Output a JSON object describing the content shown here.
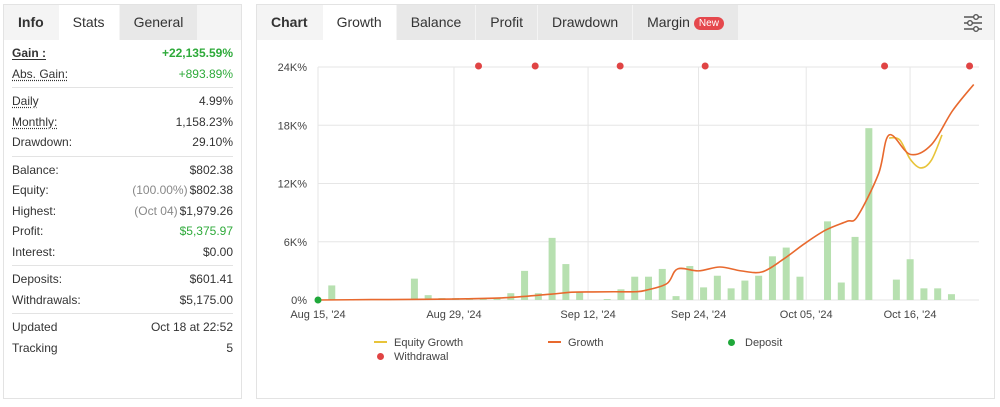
{
  "left_tabs": [
    "Info",
    "Stats",
    "General"
  ],
  "stats": {
    "groups": [
      [
        {
          "label": "Gain :",
          "value": "+22,135.59%",
          "style": "b",
          "vstyle": "bgreen"
        },
        {
          "label": "Abs. Gain:",
          "value": "+893.89%",
          "style": "u",
          "vstyle": "green"
        }
      ],
      [
        {
          "label": "Daily",
          "value": "4.99%",
          "style": "u",
          "vstyle": ""
        },
        {
          "label": "Monthly:",
          "value": "1,158.23%",
          "style": "u",
          "vstyle": ""
        },
        {
          "label": "Drawdown:",
          "value": "29.10%",
          "style": "",
          "vstyle": ""
        }
      ],
      [
        {
          "label": "Balance:",
          "value": "$802.38",
          "style": "",
          "vstyle": ""
        },
        {
          "label": "Equity:",
          "pre": "(100.00%)",
          "value": "$802.38",
          "style": "",
          "vstyle": ""
        },
        {
          "label": "Highest:",
          "pre": "(Oct 04)",
          "value": "$1,979.26",
          "style": "",
          "vstyle": ""
        },
        {
          "label": "Profit:",
          "value": "$5,375.97",
          "style": "",
          "vstyle": "green"
        },
        {
          "label": "Interest:",
          "value": "$0.00",
          "style": "",
          "vstyle": ""
        }
      ],
      [
        {
          "label": "Deposits:",
          "value": "$601.41",
          "style": "",
          "vstyle": ""
        },
        {
          "label": "Withdrawals:",
          "value": "$5,175.00",
          "style": "",
          "vstyle": ""
        }
      ],
      [
        {
          "label": "Updated",
          "value": "Oct 18 at 22:52",
          "style": "",
          "vstyle": ""
        },
        {
          "label": "Tracking",
          "value": "5",
          "style": "",
          "vstyle": ""
        }
      ]
    ]
  },
  "right_tabs": [
    "Chart",
    "Growth",
    "Balance",
    "Profit",
    "Drawdown",
    "Margin"
  ],
  "margin_badge": "New",
  "icons": {
    "filter": "sliders-icon"
  },
  "colors": {
    "growth": "#e8692e",
    "equity": "#e8c43a",
    "bars": "#b7e0b0",
    "withdrawal": "#e04444",
    "deposit": "#1fa83a",
    "grid": "#e6e6e6"
  },
  "legend": {
    "equity": "Equity Growth",
    "growth": "Growth",
    "deposit": "Deposit",
    "withdrawal": "Withdrawal"
  },
  "chart_data": {
    "type": "line",
    "xlabels": [
      "Aug 15, '24",
      "Aug 29, '24",
      "Sep 12, '24",
      "Sep 24, '24",
      "Oct 05, '24",
      "Oct 16, '24"
    ],
    "ylabels": [
      "0%",
      "6K%",
      "12K%",
      "18K%",
      "24K%"
    ],
    "ylim": [
      0,
      24000
    ],
    "n_days": 50,
    "growth": [
      [
        0,
        0
      ],
      [
        5,
        40
      ],
      [
        10,
        70
      ],
      [
        14,
        120
      ],
      [
        18,
        250
      ],
      [
        22,
        600
      ],
      [
        24,
        800
      ],
      [
        26,
        830
      ],
      [
        28,
        850
      ],
      [
        30,
        850
      ],
      [
        31,
        1000
      ],
      [
        33,
        1700
      ],
      [
        34,
        3200
      ],
      [
        36,
        3000
      ],
      [
        38,
        3400
      ],
      [
        40,
        3000
      ],
      [
        42,
        2900
      ],
      [
        44,
        4200
      ],
      [
        46,
        5800
      ],
      [
        48,
        7200
      ],
      [
        50,
        8100
      ],
      [
        51,
        8600
      ],
      [
        53,
        13000
      ],
      [
        54,
        17000
      ],
      [
        56,
        15000
      ],
      [
        58,
        16000
      ],
      [
        60,
        19500
      ],
      [
        62,
        22200
      ]
    ],
    "equity": [
      [
        54,
        16700
      ],
      [
        55,
        16500
      ],
      [
        56,
        14500
      ],
      [
        57,
        13600
      ],
      [
        58,
        14400
      ],
      [
        59,
        17000
      ]
    ],
    "bars": [
      [
        1,
        1500
      ],
      [
        6,
        100
      ],
      [
        7,
        2200
      ],
      [
        8,
        500
      ],
      [
        9,
        200
      ],
      [
        10,
        200
      ],
      [
        11,
        200
      ],
      [
        12,
        200
      ],
      [
        13,
        200
      ],
      [
        14,
        700
      ],
      [
        15,
        3000
      ],
      [
        16,
        700
      ],
      [
        17,
        6400
      ],
      [
        18,
        3700
      ],
      [
        19,
        800
      ],
      [
        21,
        100
      ],
      [
        22,
        1100
      ],
      [
        23,
        2400
      ],
      [
        24,
        2400
      ],
      [
        25,
        3200
      ],
      [
        26,
        400
      ],
      [
        27,
        3500
      ],
      [
        28,
        1300
      ],
      [
        29,
        2500
      ],
      [
        30,
        1200
      ],
      [
        31,
        2000
      ],
      [
        32,
        2500
      ],
      [
        33,
        4500
      ],
      [
        34,
        5400
      ],
      [
        35,
        2400
      ],
      [
        37,
        8100
      ],
      [
        38,
        1800
      ],
      [
        39,
        6500
      ],
      [
        40,
        17700
      ],
      [
        42,
        2100
      ],
      [
        43,
        4200
      ],
      [
        44,
        1200
      ],
      [
        45,
        1200
      ],
      [
        46,
        600
      ]
    ],
    "withdrawals_x": [
      17,
      23,
      32,
      41,
      60,
      69
    ],
    "deposits_x": [
      0
    ]
  }
}
